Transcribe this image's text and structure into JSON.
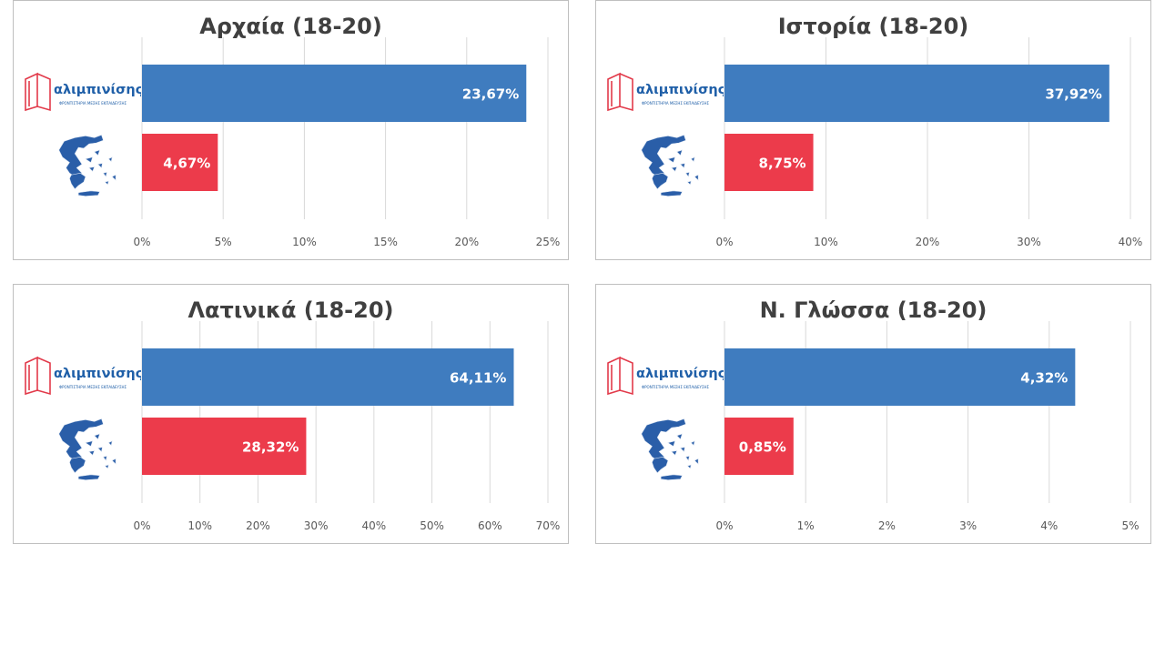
{
  "brand": {
    "logo_text": "αλιμπινίσης",
    "logo_subtitle": "ΦΡΟΝΤΙΣΤΗΡΙΑ ΜΕΣΗΣ ΕΚΠΑΙΔΕΥΣΗΣ",
    "color": "#1f5fa8",
    "book_color": "#e23a4a"
  },
  "colors": {
    "school": "#3f7cbf",
    "national": "#ec3b4b",
    "map": "#2a5ea8"
  },
  "chart_data": [
    {
      "type": "bar",
      "orientation": "horizontal",
      "title": "Αρχαία (18-20)",
      "categories": [
        "αλιμπινίσης",
        "Ελλάδα"
      ],
      "values": [
        23.67,
        4.67
      ],
      "value_labels": [
        "23,67%",
        "4,67%"
      ],
      "xlim": [
        0,
        25
      ],
      "ticks": [
        "0%",
        "5%",
        "10%",
        "15%",
        "20%",
        "25%"
      ],
      "grid": true,
      "legend": "none"
    },
    {
      "type": "bar",
      "orientation": "horizontal",
      "title": "Ιστορία (18-20)",
      "categories": [
        "αλιμπινίσης",
        "Ελλάδα"
      ],
      "values": [
        37.92,
        8.75
      ],
      "value_labels": [
        "37,92%",
        "8,75%"
      ],
      "xlim": [
        0,
        40
      ],
      "ticks": [
        "0%",
        "10%",
        "20%",
        "30%",
        "40%"
      ],
      "grid": true,
      "legend": "none"
    },
    {
      "type": "bar",
      "orientation": "horizontal",
      "title": "Λατινικά (18-20)",
      "categories": [
        "αλιμπινίσης",
        "Ελλάδα"
      ],
      "values": [
        64.11,
        28.32
      ],
      "value_labels": [
        "64,11%",
        "28,32%"
      ],
      "xlim": [
        0,
        70
      ],
      "ticks": [
        "0%",
        "10%",
        "20%",
        "30%",
        "40%",
        "50%",
        "60%",
        "70%"
      ],
      "grid": true,
      "legend": "none"
    },
    {
      "type": "bar",
      "orientation": "horizontal",
      "title": "Ν. Γλώσσα (18-20)",
      "categories": [
        "αλιμπινίσης",
        "Ελλάδα"
      ],
      "values": [
        4.32,
        0.85
      ],
      "value_labels": [
        "4,32%",
        "0,85%"
      ],
      "xlim": [
        0,
        5
      ],
      "ticks": [
        "0%",
        "1%",
        "2%",
        "3%",
        "4%",
        "5%"
      ],
      "grid": true,
      "legend": "none"
    }
  ]
}
